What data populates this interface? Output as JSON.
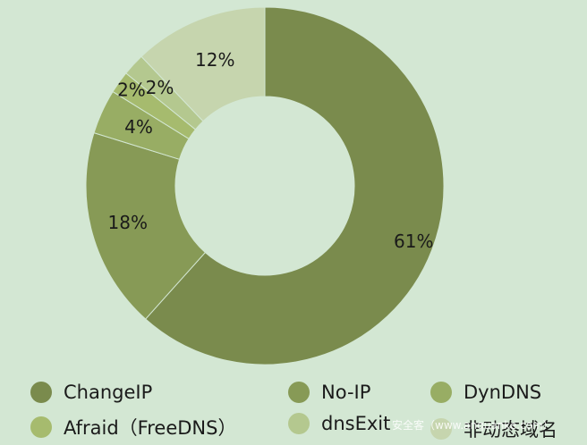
{
  "chart_data": {
    "type": "pie",
    "variant": "donut",
    "title": "",
    "legend_position": "bottom",
    "slices": [
      {
        "name": "ChangeIP",
        "value": 61,
        "label": "61%",
        "color": "#7a8b4d"
      },
      {
        "name": "No-IP",
        "value": 18,
        "label": "18%",
        "color": "#879a56"
      },
      {
        "name": "DynDNS",
        "value": 4,
        "label": "4%",
        "color": "#98ad64"
      },
      {
        "name": "Afraid（FreeDNS）",
        "value": 2,
        "label": "2%",
        "color": "#a6bb6e"
      },
      {
        "name": "dnsExit",
        "value": 2,
        "label": "2%",
        "color": "#b4c88f"
      },
      {
        "name": "非动态域名",
        "value": 12,
        "label": "12%",
        "color": "#c6d5ae"
      }
    ]
  },
  "watermark": "安全客（www.anquanke.com）"
}
